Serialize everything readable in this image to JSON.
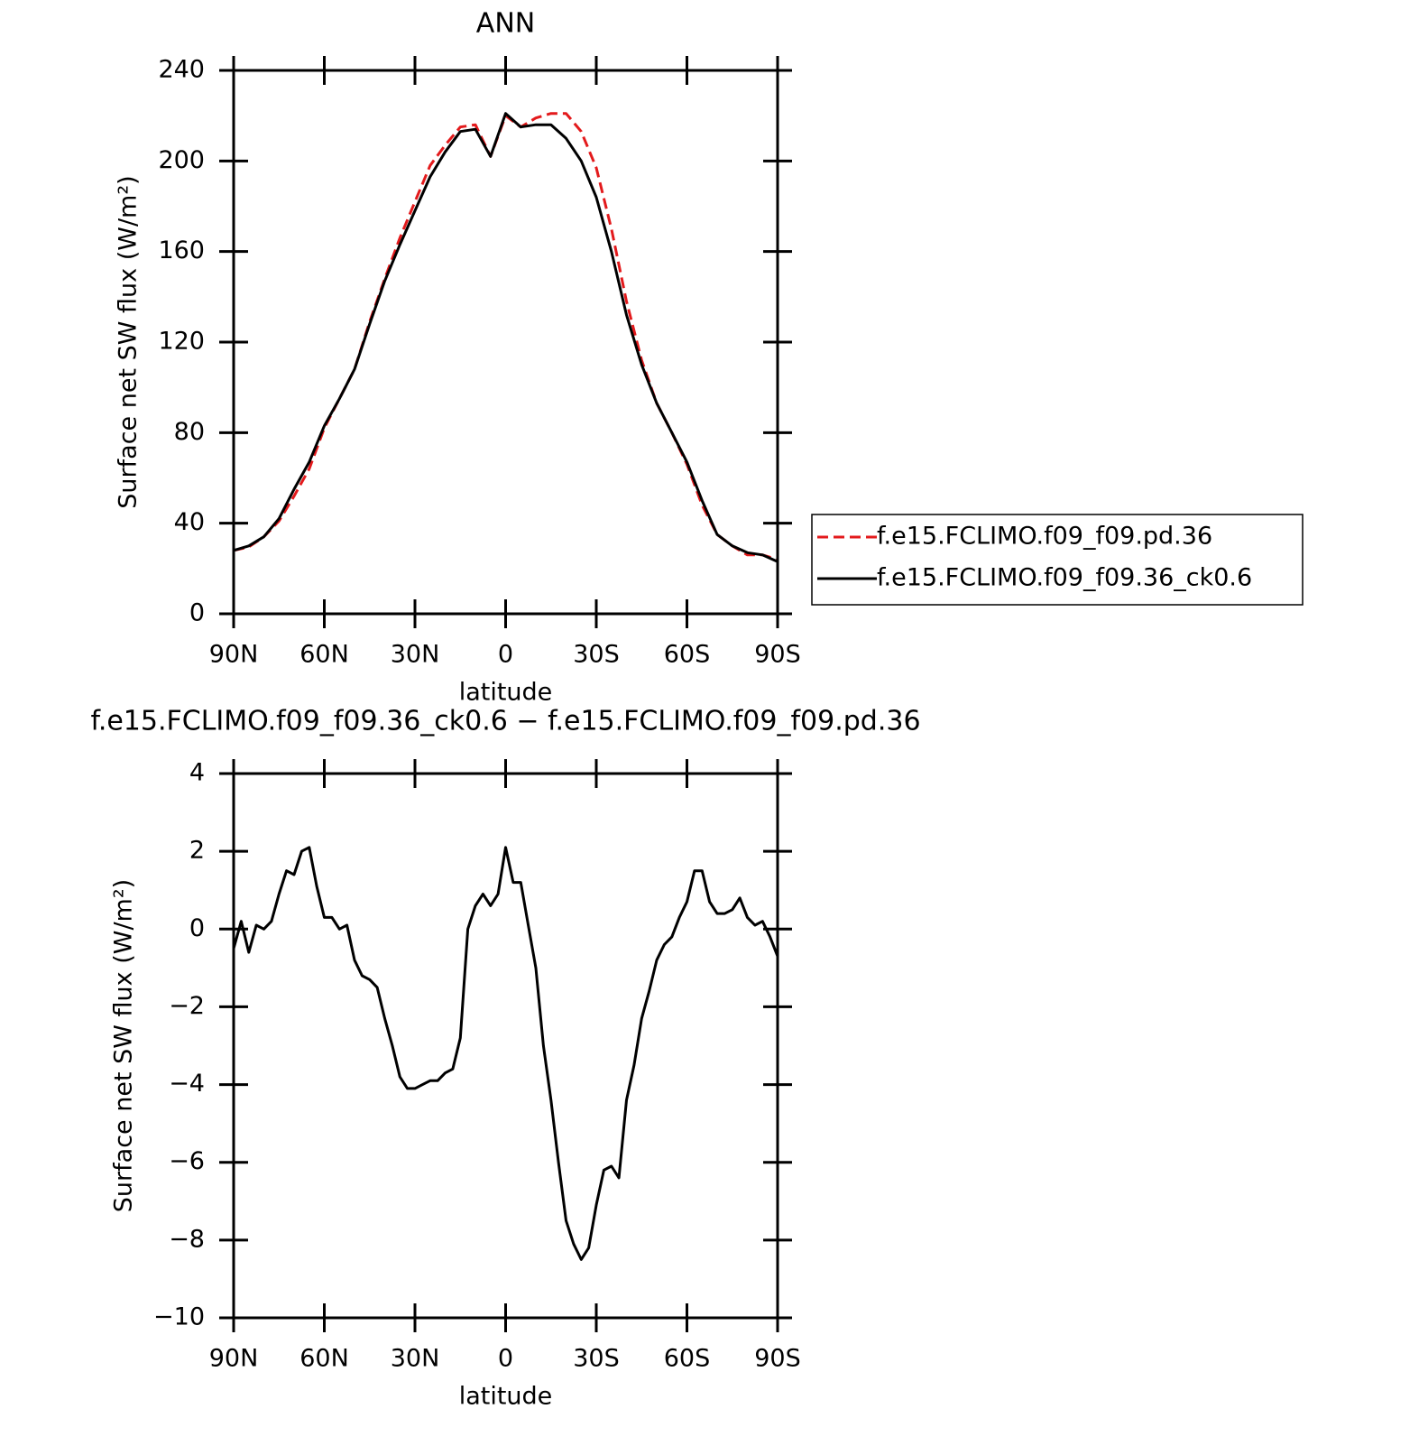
{
  "chart_data": [
    {
      "type": "line",
      "title": "ANN",
      "xlabel": "latitude",
      "ylabel": "Surface net SW flux (W/m²)",
      "x": [
        90,
        85,
        80,
        75,
        70,
        65,
        60,
        55,
        50,
        45,
        40,
        35,
        30,
        25,
        20,
        15,
        10,
        5,
        0,
        -5,
        -10,
        -15,
        -20,
        -25,
        -30,
        -35,
        -40,
        -45,
        -50,
        -55,
        -60,
        -65,
        -70,
        -75,
        -80,
        -85,
        -90
      ],
      "series": [
        {
          "name": "f.e15.FCLIMO.f09_f09.pd.36",
          "color": "#e31a1c",
          "line_style": "dashed",
          "values": [
            28,
            29.5,
            34,
            41,
            52,
            64,
            82,
            95,
            108,
            129,
            148,
            166,
            182,
            198,
            207,
            215,
            216,
            202,
            220,
            215,
            219,
            221,
            221,
            213,
            197,
            170,
            138,
            112,
            93,
            80,
            66,
            48,
            35,
            30,
            26,
            26,
            24
          ]
        },
        {
          "name": "f.e15.FCLIMO.f09_f09.36_ck0.6",
          "color": "#000000",
          "line_style": "solid",
          "values": [
            28,
            30,
            34,
            42,
            55,
            67,
            83,
            95,
            108,
            128,
            147,
            163,
            178,
            193,
            204,
            213,
            214,
            202,
            221,
            215,
            216,
            216,
            210,
            200,
            184,
            160,
            132,
            110,
            93,
            80,
            67,
            50,
            35,
            30,
            27,
            26,
            23
          ]
        }
      ],
      "xlim": [
        90,
        -90
      ],
      "xticks": [
        {
          "value": 90,
          "label": "90N"
        },
        {
          "value": 60,
          "label": "60N"
        },
        {
          "value": 30,
          "label": "30N"
        },
        0,
        {
          "value": -30,
          "label": "30S"
        },
        {
          "value": -60,
          "label": "60S"
        },
        {
          "value": -90,
          "label": "90S"
        }
      ],
      "ylim": [
        0,
        240
      ],
      "yticks": [
        0,
        40,
        80,
        120,
        160,
        200,
        240
      ],
      "legend": "right"
    },
    {
      "type": "line",
      "title": "f.e15.FCLIMO.f09_f09.36_ck0.6 − f.e15.FCLIMO.f09_f09.pd.36",
      "xlabel": "latitude",
      "ylabel": "Surface net SW flux (W/m²)",
      "x": [
        90,
        87.5,
        85,
        82.5,
        80,
        77.5,
        75,
        72.5,
        70,
        67.5,
        65,
        62.5,
        60,
        57.5,
        55,
        52.5,
        50,
        47.5,
        45,
        42.5,
        40,
        37.5,
        35,
        32.5,
        30,
        27.5,
        25,
        22.5,
        20,
        17.5,
        15,
        12.5,
        10,
        7.5,
        5,
        2.5,
        0,
        -2.5,
        -5,
        -7.5,
        -10,
        -12.5,
        -15,
        -17.5,
        -20,
        -22.5,
        -25,
        -27.5,
        -30,
        -32.5,
        -35,
        -37.5,
        -40,
        -42.5,
        -45,
        -47.5,
        -50,
        -52.5,
        -55,
        -57.5,
        -60,
        -62.5,
        -65,
        -67.5,
        -70,
        -72.5,
        -75,
        -77.5,
        -80,
        -82.5,
        -85,
        -87.5,
        -90
      ],
      "series": [
        {
          "color": "#000000",
          "line_style": "solid",
          "values": [
            -0.5,
            0.2,
            -0.6,
            0.1,
            0.0,
            0.2,
            0.9,
            1.5,
            1.4,
            2.0,
            2.1,
            1.1,
            0.3,
            0.3,
            0.0,
            0.1,
            -0.8,
            -1.2,
            -1.3,
            -1.5,
            -2.3,
            -3.0,
            -3.8,
            -4.1,
            -4.1,
            -4.0,
            -3.9,
            -3.9,
            -3.7,
            -3.6,
            -2.8,
            0.0,
            0.6,
            0.9,
            0.6,
            0.9,
            2.1,
            1.2,
            1.2,
            0.1,
            -1.0,
            -3.0,
            -4.4,
            -6.0,
            -7.5,
            -8.1,
            -8.5,
            -8.2,
            -7.1,
            -6.2,
            -6.1,
            -6.4,
            -4.4,
            -3.5,
            -2.3,
            -1.6,
            -0.8,
            -0.4,
            -0.2,
            0.3,
            0.7,
            1.5,
            1.5,
            0.7,
            0.4,
            0.4,
            0.5,
            0.8,
            0.3,
            0.1,
            0.2,
            -0.2,
            -0.7
          ]
        }
      ],
      "xlim": [
        90,
        -90
      ],
      "xticks": [
        {
          "value": 90,
          "label": "90N"
        },
        {
          "value": 60,
          "label": "60N"
        },
        {
          "value": 30,
          "label": "30N"
        },
        0,
        {
          "value": -30,
          "label": "30S"
        },
        {
          "value": -60,
          "label": "60S"
        },
        {
          "value": -90,
          "label": "90S"
        }
      ],
      "ylim": [
        -10,
        4
      ],
      "yticks": [
        {
          "value": -10,
          "label": "−10"
        },
        {
          "value": -8,
          "label": "−8"
        },
        {
          "value": -6,
          "label": "−6"
        },
        {
          "value": -4,
          "label": "−4"
        },
        {
          "value": -2,
          "label": "−2"
        },
        0,
        2,
        4
      ]
    }
  ]
}
